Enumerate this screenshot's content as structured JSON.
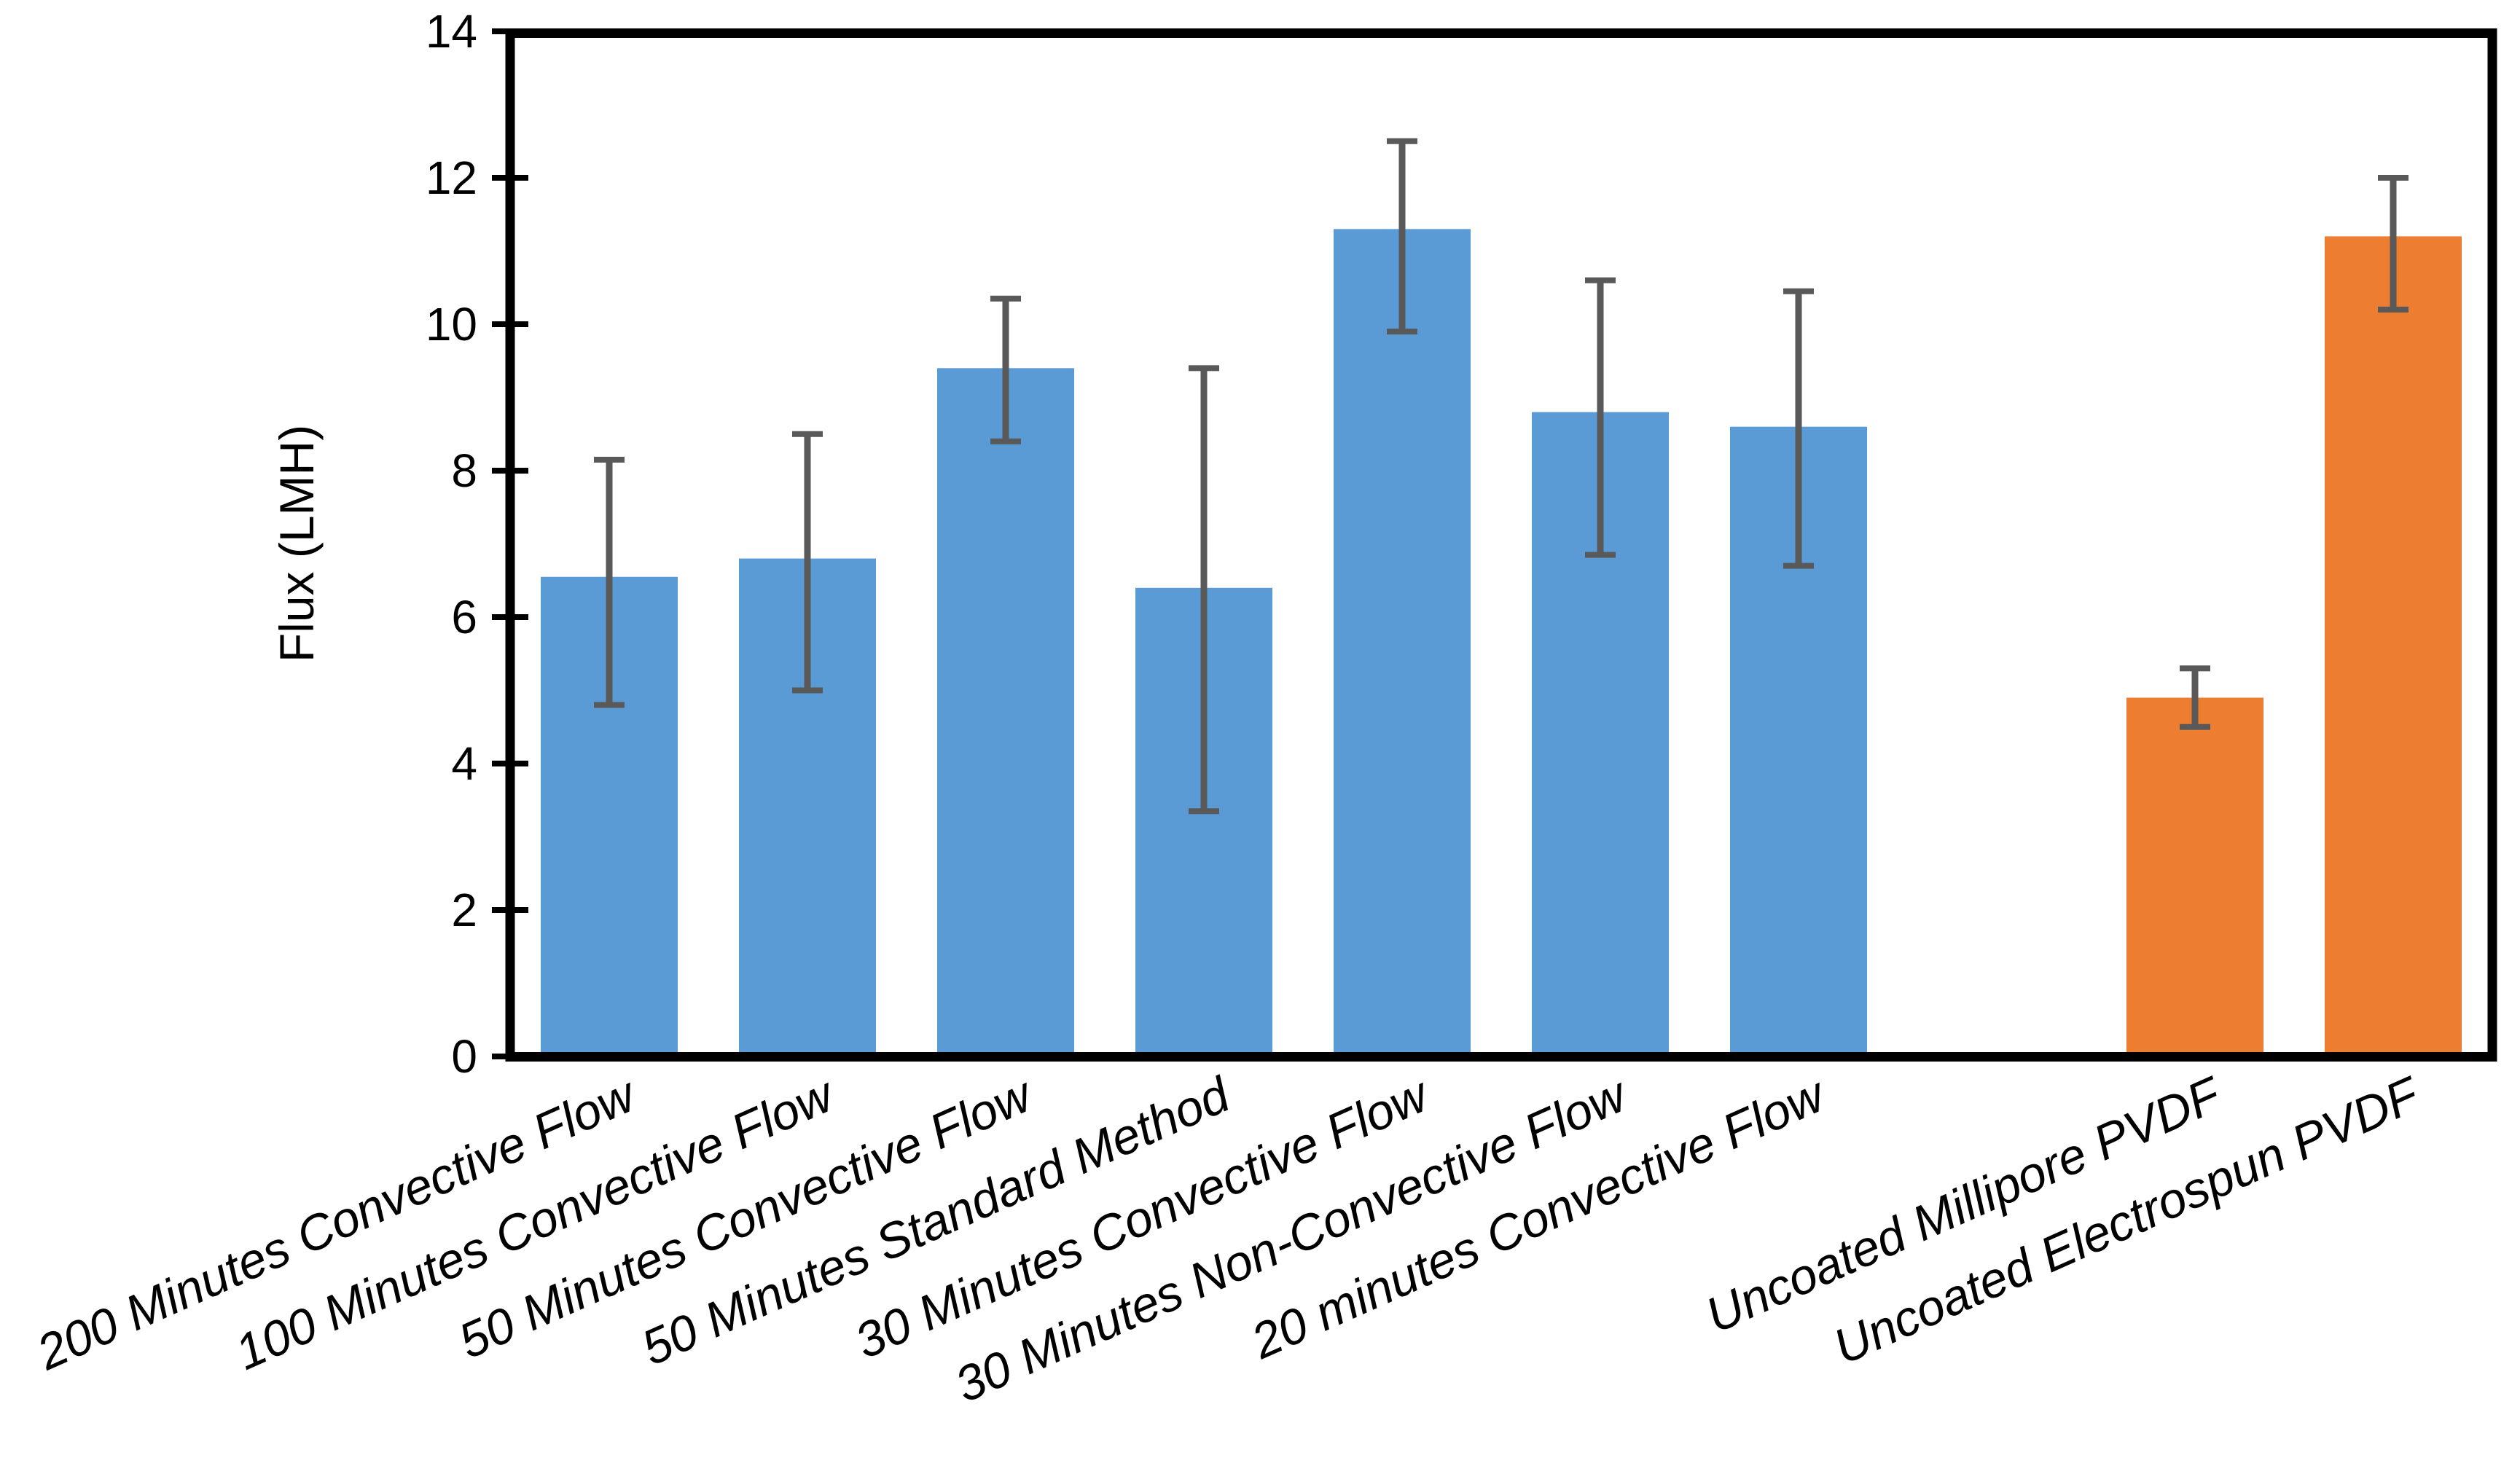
{
  "chart_data": {
    "type": "bar",
    "title": "",
    "xlabel": "",
    "ylabel": "Flux (LMH)",
    "ylim": [
      0,
      14
    ],
    "yticks": [
      0,
      2,
      4,
      6,
      8,
      10,
      12,
      14
    ],
    "grid": false,
    "legend_position": "none",
    "bars": [
      {
        "label": "200 Minutes Convective Flow",
        "value": 6.55,
        "err_low": 4.8,
        "err_high": 8.15,
        "color_key": "blue"
      },
      {
        "label": "100 Minutes Convective Flow",
        "value": 6.8,
        "err_low": 5.0,
        "err_high": 8.5,
        "color_key": "blue"
      },
      {
        "label": "50 Minutes Convective Flow",
        "value": 9.4,
        "err_low": 8.4,
        "err_high": 10.35,
        "color_key": "blue"
      },
      {
        "label": "50 Minutes Standard Method",
        "value": 6.4,
        "err_low": 3.35,
        "err_high": 9.4,
        "color_key": "blue"
      },
      {
        "label": "30 Minutes Convective Flow",
        "value": 11.3,
        "err_low": 9.9,
        "err_high": 12.5,
        "color_key": "blue"
      },
      {
        "label": "30 Minutes Non-Convective Flow",
        "value": 8.8,
        "err_low": 6.85,
        "err_high": 10.6,
        "color_key": "blue"
      },
      {
        "label": "20 minutes Convective Flow",
        "value": 8.6,
        "err_low": 6.7,
        "err_high": 10.45,
        "color_key": "blue"
      },
      {
        "label": "",
        "value": null,
        "err_low": null,
        "err_high": null,
        "color_key": null
      },
      {
        "label": "Uncoated Millipore PVDF",
        "value": 4.9,
        "err_low": 4.5,
        "err_high": 5.3,
        "color_key": "orange"
      },
      {
        "label": "Uncoated Electrospun PVDF",
        "value": 11.2,
        "err_low": 10.2,
        "err_high": 12.0,
        "color_key": "orange"
      }
    ],
    "colors": {
      "blue": "#5B9BD5",
      "orange": "#ED7D31",
      "error_bar": "#595959",
      "axis": "#000000"
    }
  }
}
